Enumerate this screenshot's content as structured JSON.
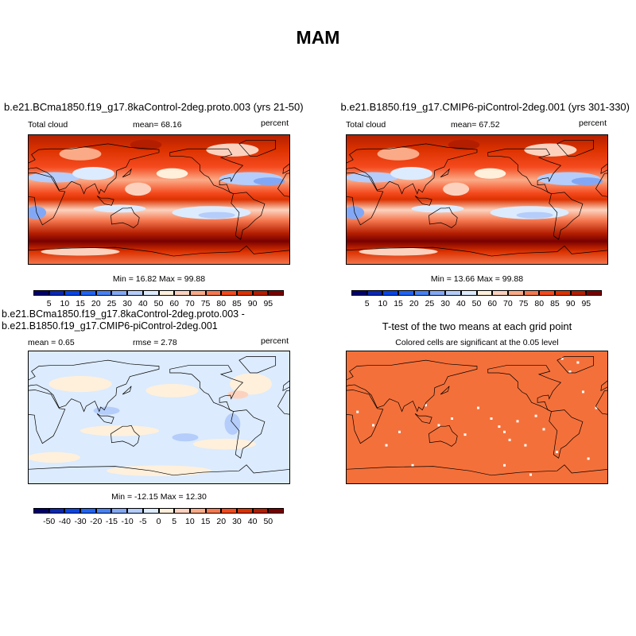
{
  "main_title": "MAM",
  "colors": {
    "levels16": [
      "#00006e",
      "#0a28b4",
      "#0a46e6",
      "#2064f5",
      "#4682f5",
      "#82a8f5",
      "#b4cdfa",
      "#dcebfd",
      "#fff0dc",
      "#fcd2be",
      "#faaa87",
      "#f57850",
      "#f54a1e",
      "#dc3200",
      "#b41e00",
      "#780000"
    ],
    "ttest_fill": "#f4703a",
    "outline": "#000000"
  },
  "panels": [
    {
      "title": "b.e21.BCma1850.f19_g17.8kaControl-2deg.proto.003 (yrs 21-50)",
      "left_label": "Total cloud",
      "center_label": "mean=  68.16",
      "right_label": "percent",
      "minmax": "Min =  16.82 Max =  99.88",
      "colorbar_labels": [
        "5",
        "10",
        "15",
        "20",
        "25",
        "30",
        "40",
        "50",
        "60",
        "70",
        "75",
        "80",
        "85",
        "90",
        "95"
      ]
    },
    {
      "title": "b.e21.B1850.f19_g17.CMIP6-piControl-2deg.001 (yrs 301-330)",
      "left_label": "Total cloud",
      "center_label": "mean=  67.52",
      "right_label": "percent",
      "minmax": "Min =  13.66 Max =  99.88",
      "colorbar_labels": [
        "5",
        "10",
        "15",
        "20",
        "25",
        "30",
        "40",
        "50",
        "60",
        "70",
        "75",
        "80",
        "85",
        "90",
        "95"
      ]
    },
    {
      "title": "b.e21.BCma1850.f19_g17.8kaControl-2deg.proto.003 - b.e21.B1850.f19_g17.CMIP6-piControl-2deg.001",
      "left_label": "mean =   0.65",
      "center_label": "rmse =   2.78",
      "right_label": "percent",
      "minmax": "Min = -12.15 Max =  12.30",
      "colorbar_labels": [
        "-50",
        "-40",
        "-30",
        "-20",
        "-15",
        "-10",
        "-5",
        "0",
        "5",
        "10",
        "15",
        "20",
        "30",
        "40",
        "50"
      ]
    },
    {
      "title": "T-test of the two means at each grid point",
      "subtitle": "Colored cells are significant at the 0.05 level"
    }
  ]
}
